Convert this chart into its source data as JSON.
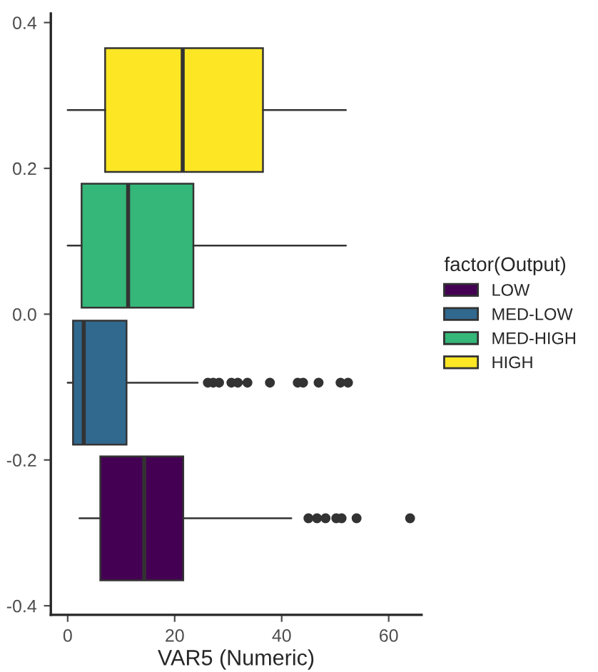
{
  "chart_data": {
    "type": "box",
    "orientation": "horizontal",
    "xlabel": "VAR5 (Numeric)",
    "legend_title": "factor(Output)",
    "legend": "right",
    "grid": false,
    "xlim": [
      -3.15,
      66.15
    ],
    "xticks": [
      0,
      20,
      40,
      60
    ],
    "ylim": [
      -0.4125,
      0.4125
    ],
    "yticks": [
      -0.4,
      -0.2,
      {
        "value": 0,
        "label": "0.0"
      },
      0.2,
      0.4
    ],
    "series": [
      {
        "name": "LOW",
        "color": "#440154",
        "x": [
          -0.28
        ],
        "boxes": [
          {
            "low": 2.2,
            "q1": 6.1,
            "median": 14.3,
            "q3": 21.6,
            "high": 41.8,
            "outliers": [
              45,
              46.6,
              48.2,
              50.2,
              51.2,
              54,
              64
            ]
          }
        ]
      },
      {
        "name": "MED-LOW",
        "color": "#31688e",
        "x": [
          -0.094
        ],
        "boxes": [
          {
            "low": 0,
            "q1": 1,
            "median": 3,
            "q3": 11,
            "high": 24.3,
            "outliers": [
              26.2,
              27.2,
              28.3,
              30.6,
              31.8,
              33.6,
              37.8,
              43,
              44,
              46.9,
              51,
              52.4
            ]
          }
        ]
      },
      {
        "name": "MED-HIGH",
        "color": "#35b779",
        "x": [
          0.094
        ],
        "boxes": [
          {
            "low": 0,
            "q1": 2.6,
            "median": 11.3,
            "q3": 23.5,
            "high": 52
          }
        ]
      },
      {
        "name": "HIGH",
        "color": "#fde725",
        "x": [
          0.28
        ],
        "boxes": [
          {
            "low": 0,
            "q1": 7,
            "median": 21.5,
            "q3": 36.5,
            "high": 52
          }
        ]
      }
    ]
  }
}
